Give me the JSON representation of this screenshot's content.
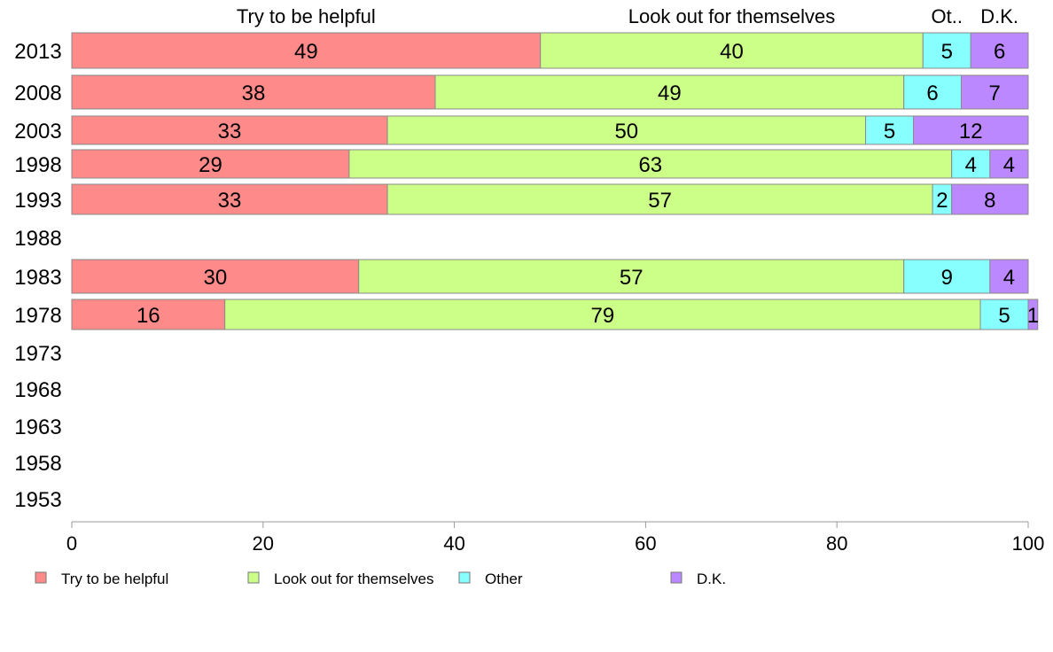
{
  "chart_data": {
    "type": "bar",
    "orientation": "horizontal",
    "stacked": true,
    "title": "",
    "xlabel": "",
    "ylabel": "",
    "xlim": [
      0,
      100
    ],
    "x_ticks": [
      0,
      20,
      40,
      60,
      80,
      100
    ],
    "grid": false,
    "legend_position": "bottom",
    "categories": [
      "2013",
      "2008",
      "2003",
      "1998",
      "1993",
      "1988",
      "1983",
      "1978",
      "1973",
      "1968",
      "1963",
      "1958",
      "1953"
    ],
    "series": [
      {
        "name": "Try to be helpful",
        "color": "#ff8a8a",
        "values": [
          49,
          38,
          33,
          29,
          33,
          null,
          30,
          16,
          null,
          null,
          null,
          null,
          null
        ]
      },
      {
        "name": "Look out for themselves",
        "color": "#ccff88",
        "values": [
          40,
          49,
          50,
          63,
          57,
          null,
          57,
          79,
          null,
          null,
          null,
          null,
          null
        ]
      },
      {
        "name": "Other",
        "color": "#88ffff",
        "values": [
          5,
          6,
          5,
          4,
          2,
          null,
          9,
          5,
          null,
          null,
          null,
          null,
          null
        ]
      },
      {
        "name": "D.K.",
        "color": "#bb88ff",
        "values": [
          6,
          7,
          12,
          4,
          8,
          null,
          4,
          1,
          null,
          null,
          null,
          null,
          null
        ]
      }
    ],
    "column_headers": [
      "Try to be helpful",
      "Look out for themselves",
      "Ot..",
      "D.K."
    ]
  }
}
